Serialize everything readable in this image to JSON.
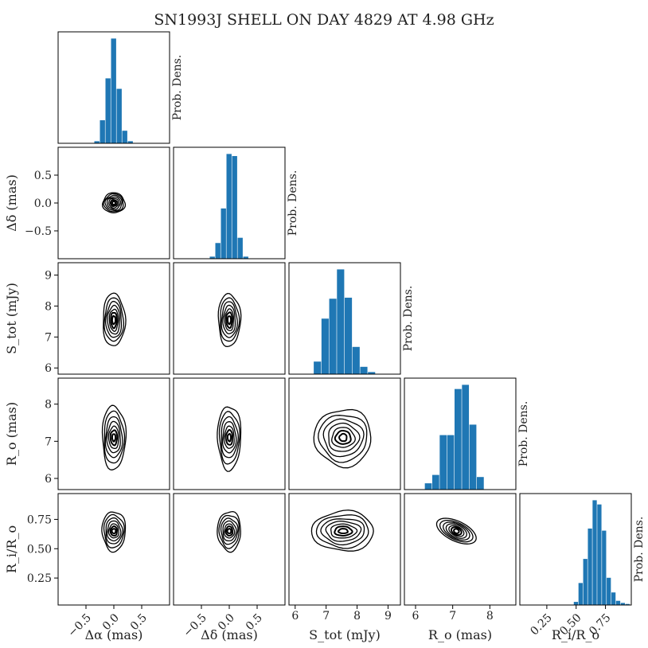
{
  "chart_data": {
    "type": "corner",
    "title": "SN1993J SHELL ON DAY 4829 AT 4.98 GHz",
    "diag_label": "Prob. Dens.",
    "bar_color": "#1f77b4",
    "contour_color": "#000000",
    "params": [
      {
        "id": "da",
        "label": "Δα (mas)",
        "ylabel": "Δδ (mas)",
        "range": [
          -1.0,
          1.0
        ],
        "ticks": [
          -0.5,
          0.0,
          0.5
        ],
        "tick_labels": [
          "−0.5",
          "0.0",
          "0.5"
        ],
        "center": 0.0,
        "sigma": 0.09
      },
      {
        "id": "dd",
        "label": "Δδ (mas)",
        "ylabel": "Δδ (mas)",
        "range": [
          -1.0,
          1.0
        ],
        "ticks": [
          -0.5,
          0.0,
          0.5
        ],
        "tick_labels": [
          "−0.5",
          "0.0",
          "0.5"
        ],
        "center": 0.0,
        "sigma": 0.09
      },
      {
        "id": "s",
        "label": "S_tot (mJy)",
        "ylabel": "S_tot (mJy)",
        "range": [
          5.8,
          9.4
        ],
        "ticks": [
          6,
          7,
          8,
          9
        ],
        "tick_labels": [
          "6",
          "7",
          "8",
          "9"
        ],
        "center": 7.55,
        "sigma": 0.33
      },
      {
        "id": "ro",
        "label": "R_o (mas)",
        "ylabel": "R_o (mas)",
        "range": [
          5.7,
          8.7
        ],
        "ticks": [
          6,
          7,
          8
        ],
        "tick_labels": [
          "6",
          "7",
          "8"
        ],
        "center": 7.1,
        "sigma": 0.3
      },
      {
        "id": "r",
        "label": "R_i/R_o",
        "ylabel": "R_i/R_o",
        "range": [
          0.02,
          0.97
        ],
        "ticks": [
          0.25,
          0.5,
          0.75
        ],
        "tick_labels": [
          "0.25",
          "0.50",
          "0.75"
        ],
        "center": 0.65,
        "sigma": 0.055
      }
    ],
    "histograms": [
      {
        "param": "da",
        "bin_edges": [
          -0.35,
          -0.25,
          -0.15,
          -0.05,
          0.05,
          0.15,
          0.25,
          0.35
        ],
        "heights": [
          0.02,
          0.22,
          0.62,
          1.0,
          0.52,
          0.12,
          0.02
        ]
      },
      {
        "param": "dd",
        "bin_edges": [
          -0.35,
          -0.25,
          -0.15,
          -0.05,
          0.05,
          0.15,
          0.25,
          0.35
        ],
        "heights": [
          0.02,
          0.15,
          0.48,
          1.0,
          0.98,
          0.2,
          0.02
        ]
      },
      {
        "param": "s",
        "bin_edges": [
          6.6,
          6.85,
          7.1,
          7.35,
          7.6,
          7.85,
          8.1,
          8.35,
          8.6
        ],
        "heights": [
          0.12,
          0.53,
          0.72,
          1.0,
          0.73,
          0.26,
          0.07,
          0.02
        ]
      },
      {
        "param": "ro",
        "bin_edges": [
          6.25,
          6.45,
          6.65,
          6.85,
          7.05,
          7.25,
          7.45,
          7.65,
          7.85
        ],
        "heights": [
          0.06,
          0.14,
          0.52,
          0.52,
          0.96,
          1.0,
          0.62,
          0.12
        ]
      },
      {
        "param": "r",
        "bin_edges": [
          0.48,
          0.52,
          0.56,
          0.6,
          0.64,
          0.68,
          0.72,
          0.76,
          0.8,
          0.84,
          0.88,
          0.92,
          0.96
        ],
        "heights": [
          0.03,
          0.21,
          0.44,
          0.73,
          1.0,
          0.96,
          0.71,
          0.26,
          0.12,
          0.04,
          0.02,
          0.01
        ]
      }
    ],
    "contours": [
      {
        "x": "da",
        "y": "dd",
        "levels": [
          {
            "rx": 0.03,
            "ry": 0.03
          },
          {
            "rx": 0.06,
            "ry": 0.055
          },
          {
            "rx": 0.09,
            "ry": 0.085
          },
          {
            "rx": 0.12,
            "ry": 0.11
          },
          {
            "rx": 0.15,
            "ry": 0.135
          },
          {
            "rx": 0.175,
            "ry": 0.16
          },
          {
            "rx": 0.2,
            "ry": 0.18
          }
        ]
      },
      {
        "x": "da",
        "y": "s",
        "levels": [
          {
            "rx": 0.03,
            "ry": 0.13
          },
          {
            "rx": 0.055,
            "ry": 0.25
          },
          {
            "rx": 0.08,
            "ry": 0.35
          },
          {
            "rx": 0.11,
            "ry": 0.46
          },
          {
            "rx": 0.14,
            "ry": 0.58
          },
          {
            "rx": 0.17,
            "ry": 0.7
          },
          {
            "rx": 0.2,
            "ry": 0.85
          }
        ]
      },
      {
        "x": "dd",
        "y": "s",
        "levels": [
          {
            "rx": 0.03,
            "ry": 0.13
          },
          {
            "rx": 0.055,
            "ry": 0.25
          },
          {
            "rx": 0.08,
            "ry": 0.35
          },
          {
            "rx": 0.11,
            "ry": 0.46
          },
          {
            "rx": 0.14,
            "ry": 0.58
          },
          {
            "rx": 0.17,
            "ry": 0.7
          },
          {
            "rx": 0.2,
            "ry": 0.85
          }
        ]
      },
      {
        "x": "da",
        "y": "ro",
        "levels": [
          {
            "rx": 0.03,
            "ry": 0.1
          },
          {
            "rx": 0.06,
            "ry": 0.2
          },
          {
            "rx": 0.09,
            "ry": 0.3
          },
          {
            "rx": 0.12,
            "ry": 0.42
          },
          {
            "rx": 0.15,
            "ry": 0.55
          },
          {
            "rx": 0.18,
            "ry": 0.7
          },
          {
            "rx": 0.21,
            "ry": 0.86
          }
        ]
      },
      {
        "x": "dd",
        "y": "ro",
        "levels": [
          {
            "rx": 0.03,
            "ry": 0.1
          },
          {
            "rx": 0.06,
            "ry": 0.2
          },
          {
            "rx": 0.09,
            "ry": 0.3
          },
          {
            "rx": 0.12,
            "ry": 0.42
          },
          {
            "rx": 0.15,
            "ry": 0.55
          },
          {
            "rx": 0.18,
            "ry": 0.7
          },
          {
            "rx": 0.21,
            "ry": 0.86
          }
        ]
      },
      {
        "x": "s",
        "y": "ro",
        "levels": [
          {
            "rx": 0.12,
            "ry": 0.1
          },
          {
            "rx": 0.25,
            "ry": 0.18
          },
          {
            "rx": 0.37,
            "ry": 0.27
          },
          {
            "rx": 0.5,
            "ry": 0.38
          },
          {
            "rx": 0.64,
            "ry": 0.5
          },
          {
            "rx": 0.78,
            "ry": 0.63
          },
          {
            "rx": 0.92,
            "ry": 0.77
          }
        ]
      },
      {
        "x": "da",
        "y": "r",
        "levels": [
          {
            "rx": 0.035,
            "ry": 0.02
          },
          {
            "rx": 0.06,
            "ry": 0.04
          },
          {
            "rx": 0.09,
            "ry": 0.06
          },
          {
            "rx": 0.12,
            "ry": 0.085
          },
          {
            "rx": 0.15,
            "ry": 0.11
          },
          {
            "rx": 0.18,
            "ry": 0.14
          },
          {
            "rx": 0.21,
            "ry": 0.17
          }
        ]
      },
      {
        "x": "dd",
        "y": "r",
        "levels": [
          {
            "rx": 0.035,
            "ry": 0.02
          },
          {
            "rx": 0.06,
            "ry": 0.04
          },
          {
            "rx": 0.09,
            "ry": 0.06
          },
          {
            "rx": 0.12,
            "ry": 0.085
          },
          {
            "rx": 0.15,
            "ry": 0.11
          },
          {
            "rx": 0.18,
            "ry": 0.14
          },
          {
            "rx": 0.21,
            "ry": 0.17
          }
        ]
      },
      {
        "x": "s",
        "y": "r",
        "levels": [
          {
            "rx": 0.15,
            "ry": 0.02
          },
          {
            "rx": 0.28,
            "ry": 0.04
          },
          {
            "rx": 0.42,
            "ry": 0.06
          },
          {
            "rx": 0.56,
            "ry": 0.085
          },
          {
            "rx": 0.7,
            "ry": 0.11
          },
          {
            "rx": 0.84,
            "ry": 0.14
          },
          {
            "rx": 1.0,
            "ry": 0.17
          }
        ]
      },
      {
        "x": "ro",
        "y": "r",
        "correlated": true,
        "levels": [
          {
            "t": 0.15,
            "w": 0.018
          },
          {
            "t": 0.3,
            "w": 0.03
          },
          {
            "t": 0.45,
            "w": 0.04
          },
          {
            "t": 0.62,
            "w": 0.052
          },
          {
            "t": 0.8,
            "w": 0.062
          },
          {
            "t": 1.0,
            "w": 0.072
          },
          {
            "t": 1.2,
            "w": 0.085
          }
        ]
      }
    ]
  }
}
